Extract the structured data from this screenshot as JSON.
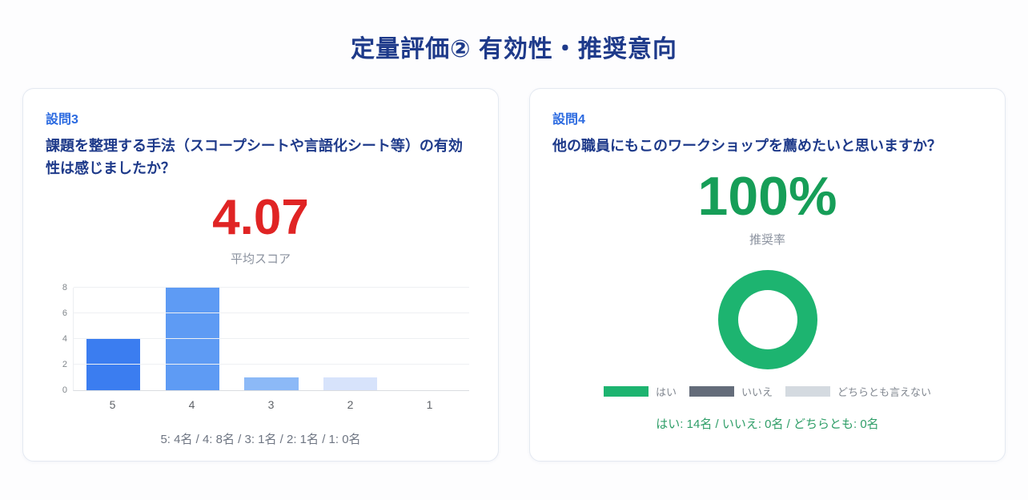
{
  "page": {
    "title": "定量評価② 有効性・推奨意向"
  },
  "colors": {
    "title_navy": "#1e3a8a",
    "question_label_blue": "#2b6ae0",
    "metric_red": "#e02424",
    "metric_green": "#169e58",
    "donut_green": "#1db470",
    "legend_no_gray": "#646c7a",
    "legend_neutral_gray": "#d4dae0",
    "caption_gray": "#6e7582",
    "caption_green": "#2f9e68"
  },
  "cards": {
    "q3": {
      "label": "設問3",
      "question": "課題を整理する手法（スコープシートや言語化シート等）の有効性は感じましたか？",
      "value": "4.07",
      "value_label": "平均スコア",
      "caption": "5: 4名 / 4: 8名 / 3: 1名 / 2: 1名 / 1: 0名"
    },
    "q4": {
      "label": "設問4",
      "question": "他の職員にもこのワークショップを薦めたいと思いますか？",
      "value": "100%",
      "value_label": "推奨率",
      "caption": "はい: 14名 / いいえ: 0名 / どちらとも: 0名"
    }
  },
  "chart_data": [
    {
      "type": "bar",
      "title": "設問3 スコア分布",
      "categories": [
        "5",
        "4",
        "3",
        "2",
        "1"
      ],
      "values": [
        4,
        8,
        1,
        1,
        0
      ],
      "xlabel": "",
      "ylabel": "",
      "ylim": [
        0,
        8
      ],
      "yticks": [
        0,
        2,
        4,
        6,
        8
      ],
      "grid": true,
      "bar_colors": [
        "#3b7df0",
        "#5e9bf4",
        "#8cb9f7",
        "#d7e3fb",
        "#eaf1fd"
      ]
    },
    {
      "type": "pie",
      "donut": true,
      "title": "設問4 推奨意向",
      "labels": [
        "はい",
        "いいえ",
        "どちらとも言えない"
      ],
      "values": [
        14,
        0,
        0
      ],
      "colors": [
        "#1db470",
        "#646c7a",
        "#d4dae0"
      ],
      "legend_position": "bottom"
    }
  ]
}
